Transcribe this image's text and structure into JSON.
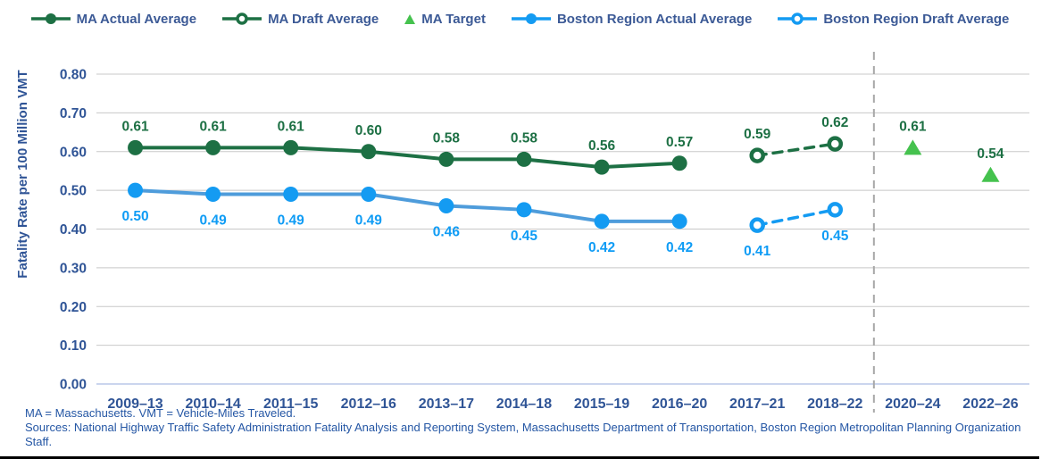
{
  "colors": {
    "ma_green": "#1D7044",
    "target_green": "#45C24E",
    "boston_blue_marker": "#149BF2",
    "boston_blue_line": "#4E9CDB",
    "boston_blue_label": "#0F9CF5",
    "axis_blue": "#2F5496",
    "legend_text": "#3C5A96",
    "footnote_blue": "#2456A4",
    "gridline": "#C8C8C8",
    "baseline_axis": "#CBD5EE",
    "divider_gray": "#A8A8A8"
  },
  "legend": {
    "items": [
      {
        "label": "MA Actual Average",
        "swatch": "solid-line-filled-circle",
        "color": "#1D7044"
      },
      {
        "label": "MA Draft Average",
        "swatch": "solid-line-open-circle",
        "color": "#1D7044"
      },
      {
        "label": "MA Target",
        "swatch": "triangle",
        "color": "#45C24E"
      },
      {
        "label": "Boston Region Actual Average",
        "swatch": "solid-line-filled-circle",
        "color": "#149BF2"
      },
      {
        "label": "Boston Region Draft Average",
        "swatch": "solid-line-open-circle",
        "color": "#149BF2"
      }
    ]
  },
  "chart_data": {
    "type": "line",
    "title": "",
    "xlabel": "",
    "ylabel": "Fatality Rate per 100 Million VMT",
    "ylim": [
      0,
      0.8
    ],
    "yticks": [
      "0.00",
      "0.10",
      "0.20",
      "0.30",
      "0.40",
      "0.50",
      "0.60",
      "0.70",
      "0.80"
    ],
    "grid": "horizontal",
    "legend_position": "top",
    "categories": [
      "2009–13",
      "2010–14",
      "2011–15",
      "2012–16",
      "2013–17",
      "2014–18",
      "2015–19",
      "2016–20",
      "2017–21",
      "2018–22",
      "2020–24",
      "2022–26"
    ],
    "divider_after_category": "2018–22",
    "series": [
      {
        "name": "MA Actual Average",
        "line": "solid",
        "marker": "filled-circle",
        "color": "#1D7044",
        "marker_color": "#1D7044",
        "label_color": "#1D7044",
        "label_position": "above",
        "points": [
          {
            "x": "2009–13",
            "v": 0.61,
            "label": "0.61"
          },
          {
            "x": "2010–14",
            "v": 0.61,
            "label": "0.61"
          },
          {
            "x": "2011–15",
            "v": 0.61,
            "label": "0.61"
          },
          {
            "x": "2012–16",
            "v": 0.6,
            "label": "0.60"
          },
          {
            "x": "2013–17",
            "v": 0.58,
            "label": "0.58"
          },
          {
            "x": "2014–18",
            "v": 0.58,
            "label": "0.58"
          },
          {
            "x": "2015–19",
            "v": 0.56,
            "label": "0.56"
          },
          {
            "x": "2016–20",
            "v": 0.57,
            "label": "0.57"
          }
        ]
      },
      {
        "name": "MA Draft Average",
        "line": "dashed",
        "marker": "open-circle",
        "color": "#1D7044",
        "marker_color": "#1D7044",
        "label_color": "#1D7044",
        "label_position": "above",
        "points": [
          {
            "x": "2017–21",
            "v": 0.59,
            "label": "0.59"
          },
          {
            "x": "2018–22",
            "v": 0.62,
            "label": "0.62"
          }
        ]
      },
      {
        "name": "MA Target",
        "line": "none",
        "marker": "triangle",
        "color": "#45C24E",
        "marker_color": "#45C24E",
        "label_color": "#1D7044",
        "label_position": "above",
        "points": [
          {
            "x": "2020–24",
            "v": 0.61,
            "label": "0.61"
          },
          {
            "x": "2022–26",
            "v": 0.54,
            "label": "0.54"
          }
        ]
      },
      {
        "name": "Boston Region Actual Average",
        "line": "solid",
        "marker": "filled-circle",
        "color": "#4E9CDB",
        "marker_color": "#149BF2",
        "label_color": "#0F9CF5",
        "label_position": "below",
        "points": [
          {
            "x": "2009–13",
            "v": 0.5,
            "label": "0.50"
          },
          {
            "x": "2010–14",
            "v": 0.49,
            "label": "0.49"
          },
          {
            "x": "2011–15",
            "v": 0.49,
            "label": "0.49"
          },
          {
            "x": "2012–16",
            "v": 0.49,
            "label": "0.49"
          },
          {
            "x": "2013–17",
            "v": 0.46,
            "label": "0.46"
          },
          {
            "x": "2014–18",
            "v": 0.45,
            "label": "0.45"
          },
          {
            "x": "2015–19",
            "v": 0.42,
            "label": "0.42"
          },
          {
            "x": "2016–20",
            "v": 0.42,
            "label": "0.42"
          }
        ]
      },
      {
        "name": "Boston Region Draft Average",
        "line": "dashed",
        "marker": "open-circle",
        "color": "#149BF2",
        "marker_color": "#149BF2",
        "label_color": "#0F9CF5",
        "label_position": "below",
        "points": [
          {
            "x": "2017–21",
            "v": 0.41,
            "label": "0.41"
          },
          {
            "x": "2018–22",
            "v": 0.45,
            "label": "0.45"
          }
        ]
      }
    ]
  },
  "footnotes": {
    "line1": "MA = Massachusetts. VMT = Vehicle-Miles Traveled.",
    "line2": "Sources: National Highway Traffic Safety Administration Fatality Analysis and Reporting System, Massachusetts Department of Transportation, Boston Region Metropolitan Planning Organization Staff."
  }
}
